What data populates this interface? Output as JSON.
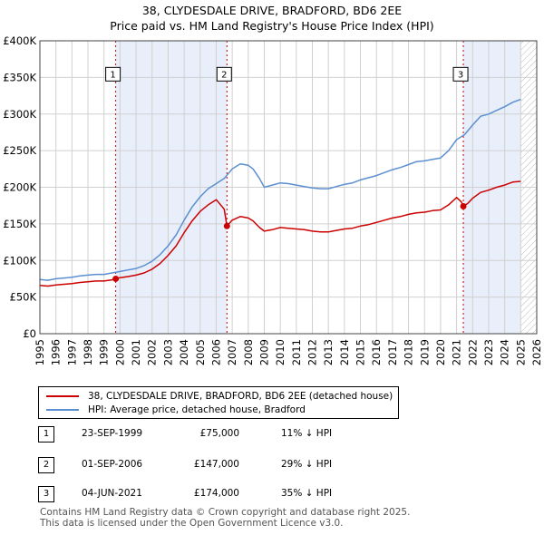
{
  "title": "38, CLYDESDALE DRIVE, BRADFORD, BD6 2EE",
  "subtitle": "Price paid vs. HM Land Registry's House Price Index (HPI)",
  "colors": {
    "property": "#cc0000",
    "hpi": "#5b8fd0",
    "band": "#e8eefa",
    "hatch": "#bbbbbb",
    "grid": "#d0d0d0"
  },
  "legend": {
    "property_label": "38, CLYDESDALE DRIVE, BRADFORD, BD6 2EE (detached house)",
    "hpi_label": "HPI: Average price, detached house, Bradford"
  },
  "sales": [
    {
      "num": "1",
      "date": "23-SEP-1999",
      "price": "£75,000",
      "hpi": "11% ↓ HPI",
      "t": 1999.73,
      "value": 75000
    },
    {
      "num": "2",
      "date": "01-SEP-2006",
      "price": "£147,000",
      "hpi": "29% ↓ HPI",
      "t": 2006.67,
      "value": 147000
    },
    {
      "num": "3",
      "date": "04-JUN-2021",
      "price": "£174,000",
      "hpi": "35% ↓ HPI",
      "t": 2021.42,
      "value": 174000
    }
  ],
  "footer": {
    "line1": "Contains HM Land Registry data © Crown copyright and database right 2025.",
    "line2": "This data is licensed under the Open Government Licence v3.0."
  },
  "chart_data": {
    "type": "line",
    "title": "38, CLYDESDALE DRIVE, BRADFORD, BD6 2EE",
    "xlim": [
      1995,
      2026
    ],
    "ylim": [
      0,
      400000
    ],
    "x_ticks": [
      "1995",
      "1996",
      "1997",
      "1998",
      "1999",
      "2000",
      "2001",
      "2002",
      "2003",
      "2004",
      "2005",
      "2006",
      "2007",
      "2008",
      "2009",
      "2010",
      "2011",
      "2012",
      "2013",
      "2014",
      "2015",
      "2016",
      "2017",
      "2018",
      "2019",
      "2020",
      "2021",
      "2022",
      "2023",
      "2024",
      "2025",
      "2026"
    ],
    "y_ticks": [
      {
        "value": 0,
        "label": "£0"
      },
      {
        "value": 50000,
        "label": "£50K"
      },
      {
        "value": 100000,
        "label": "£100K"
      },
      {
        "value": 150000,
        "label": "£150K"
      },
      {
        "value": 200000,
        "label": "£200K"
      },
      {
        "value": 250000,
        "label": "£250K"
      },
      {
        "value": 300000,
        "label": "£300K"
      },
      {
        "value": 350000,
        "label": "£350K"
      },
      {
        "value": 400000,
        "label": "£400K"
      }
    ],
    "grid": true,
    "shaded_periods": [
      [
        1999.73,
        2006.67
      ],
      [
        2021.42,
        2025.0
      ]
    ],
    "hatch_after": 2025.0,
    "marker_label_value": 355000,
    "series": [
      {
        "name": "HPI: Average price, detached house, Bradford",
        "x": [
          1995.0,
          1995.5,
          1996.0,
          1996.5,
          1997.0,
          1997.5,
          1998.0,
          1998.5,
          1999.0,
          1999.5,
          2000.0,
          2000.5,
          2001.0,
          2001.5,
          2002.0,
          2002.5,
          2003.0,
          2003.5,
          2004.0,
          2004.5,
          2005.0,
          2005.5,
          2006.0,
          2006.5,
          2007.0,
          2007.5,
          2008.0,
          2008.3,
          2008.7,
          2009.0,
          2009.5,
          2010.0,
          2010.5,
          2011.0,
          2011.5,
          2012.0,
          2012.5,
          2013.0,
          2013.5,
          2014.0,
          2014.5,
          2015.0,
          2015.5,
          2016.0,
          2016.5,
          2017.0,
          2017.5,
          2018.0,
          2018.5,
          2019.0,
          2019.5,
          2020.0,
          2020.5,
          2021.0,
          2021.5,
          2022.0,
          2022.5,
          2023.0,
          2023.5,
          2024.0,
          2024.5,
          2025.0
        ],
        "values": [
          74000,
          73000,
          75000,
          76000,
          77000,
          79000,
          80000,
          81000,
          81000,
          83000,
          85000,
          87000,
          89000,
          93000,
          99000,
          108000,
          120000,
          135000,
          155000,
          173000,
          187000,
          198000,
          205000,
          212000,
          225000,
          232000,
          230000,
          225000,
          212000,
          200000,
          203000,
          206000,
          205000,
          203000,
          201000,
          199000,
          198000,
          198000,
          201000,
          204000,
          206000,
          210000,
          213000,
          216000,
          220000,
          224000,
          227000,
          231000,
          235000,
          236000,
          238000,
          240000,
          250000,
          265000,
          272000,
          285000,
          297000,
          300000,
          305000,
          310000,
          316000,
          320000
        ]
      },
      {
        "name": "38, CLYDESDALE DRIVE, BRADFORD, BD6 2EE (detached house)",
        "x": [
          1995.0,
          1995.5,
          1996.0,
          1996.5,
          1997.0,
          1997.5,
          1998.0,
          1998.5,
          1999.0,
          1999.5,
          1999.73,
          2000.0,
          2000.5,
          2001.0,
          2001.5,
          2002.0,
          2002.5,
          2003.0,
          2003.5,
          2004.0,
          2004.5,
          2005.0,
          2005.5,
          2006.0,
          2006.5,
          2006.67,
          2007.0,
          2007.5,
          2008.0,
          2008.3,
          2008.7,
          2009.0,
          2009.5,
          2010.0,
          2010.5,
          2011.0,
          2011.5,
          2012.0,
          2012.5,
          2013.0,
          2013.5,
          2014.0,
          2014.5,
          2015.0,
          2015.5,
          2016.0,
          2016.5,
          2017.0,
          2017.5,
          2018.0,
          2018.5,
          2019.0,
          2019.5,
          2020.0,
          2020.5,
          2021.0,
          2021.3,
          2021.42,
          2021.7,
          2022.0,
          2022.5,
          2023.0,
          2023.5,
          2024.0,
          2024.5,
          2025.0
        ],
        "values": [
          66000,
          65000,
          66500,
          67500,
          68500,
          70000,
          71000,
          72000,
          72000,
          73500,
          75000,
          76500,
          78000,
          80000,
          83000,
          88000,
          96000,
          107000,
          120000,
          138000,
          154000,
          167000,
          176000,
          183000,
          170000,
          147000,
          155000,
          160000,
          158000,
          154000,
          145000,
          140000,
          142000,
          145000,
          144000,
          143000,
          142000,
          140000,
          139000,
          139000,
          141000,
          143000,
          144000,
          147000,
          149000,
          152000,
          155000,
          158000,
          160000,
          163000,
          165000,
          166000,
          168000,
          169000,
          176000,
          186000,
          180000,
          174000,
          178000,
          185000,
          193000,
          196000,
          200000,
          203000,
          207000,
          208000
        ]
      }
    ]
  }
}
